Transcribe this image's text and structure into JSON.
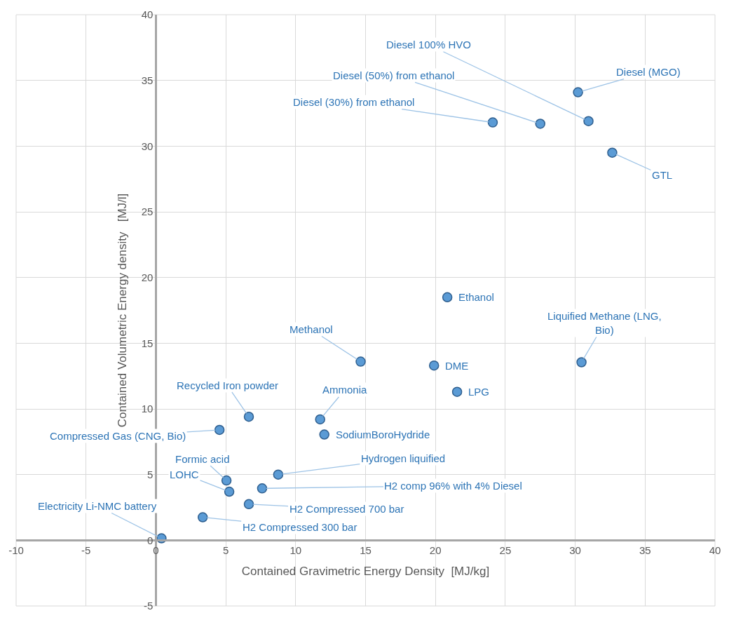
{
  "chart_data": {
    "type": "scatter",
    "xlabel": "Contained Gravimetric Energy Density  [MJ/kg]",
    "ylabel": "Contained Volumetric Energy density   [MJ/l]",
    "x": [
      30.2,
      30.95,
      27.5,
      24.1,
      32.65,
      20.85,
      30.45,
      14.65,
      19.9,
      21.55,
      11.75,
      12.05,
      6.65,
      4.55,
      8.75,
      5.05,
      5.25,
      7.6,
      6.65,
      3.35,
      0.4
    ],
    "series": [
      {
        "color": "#5b9bd5",
        "values": [
          34.1,
          31.9,
          31.7,
          31.8,
          29.5,
          18.5,
          13.55,
          13.6,
          13.3,
          11.3,
          9.2,
          8.05,
          9.4,
          8.4,
          5.0,
          4.55,
          3.7,
          3.95,
          2.75,
          1.75,
          0.15
        ]
      }
    ],
    "annotations": [
      {
        "text": "Diesel (MGO)",
        "x": 30.2,
        "y": 34.1
      },
      {
        "text": "Diesel 100% HVO",
        "x": 30.95,
        "y": 31.9
      },
      {
        "text": "Diesel (50%) from ethanol",
        "x": 27.5,
        "y": 31.7
      },
      {
        "text": "Diesel (30%) from ethanol",
        "x": 24.1,
        "y": 31.8
      },
      {
        "text": "GTL",
        "x": 32.65,
        "y": 29.5
      },
      {
        "text": "Ethanol",
        "x": 20.85,
        "y": 18.5
      },
      {
        "text": "Liquified Methane (LNG, Bio)",
        "x": 30.45,
        "y": 13.55
      },
      {
        "text": "Methanol",
        "x": 14.65,
        "y": 13.6
      },
      {
        "text": "DME",
        "x": 19.9,
        "y": 13.3
      },
      {
        "text": "LPG",
        "x": 21.55,
        "y": 11.3
      },
      {
        "text": "Ammonia",
        "x": 11.75,
        "y": 9.2
      },
      {
        "text": "SodiumBoroHydride",
        "x": 12.05,
        "y": 8.05
      },
      {
        "text": "Recycled Iron powder",
        "x": 6.65,
        "y": 9.4
      },
      {
        "text": "Compressed Gas (CNG, Bio)",
        "x": 4.55,
        "y": 8.4
      },
      {
        "text": "Hydrogen liquified",
        "x": 8.75,
        "y": 5.0
      },
      {
        "text": "Formic acid",
        "x": 5.05,
        "y": 4.55
      },
      {
        "text": "LOHC",
        "x": 5.25,
        "y": 3.7
      },
      {
        "text": "H2 comp 96% with 4% Diesel",
        "x": 7.6,
        "y": 3.95
      },
      {
        "text": "H2 Compressed 700 bar",
        "x": 6.65,
        "y": 2.75
      },
      {
        "text": "H2 Compressed 300 bar",
        "x": 3.35,
        "y": 1.75
      },
      {
        "text": "Electricity Li-NMC battery",
        "x": 0.4,
        "y": 0.15
      }
    ],
    "xlim": [
      -10,
      40
    ],
    "xticks": [
      -10,
      -5,
      0,
      5,
      10,
      15,
      20,
      25,
      30,
      35,
      40
    ],
    "ylim": [
      -5,
      40
    ],
    "yticks": [
      -5,
      0,
      5,
      10,
      15,
      20,
      25,
      30,
      35,
      40
    ],
    "grid": true,
    "marker": "circle"
  }
}
